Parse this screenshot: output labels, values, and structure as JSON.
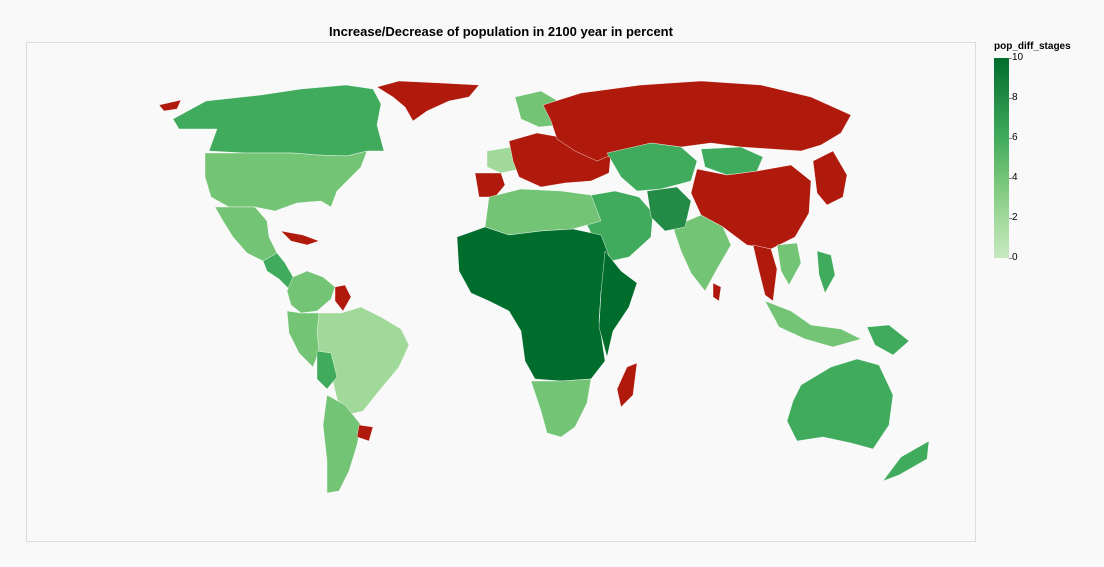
{
  "title": "Increase/Decrease of population in 2100 year in percent",
  "legend": {
    "title": "pop_diff_stages",
    "ticks": [
      "10",
      "8",
      "6",
      "4",
      "2",
      "0"
    ],
    "range": [
      0,
      10
    ],
    "colors": [
      "#c7e9c0",
      "#a1d99b",
      "#74c476",
      "#41ab5d",
      "#238b45",
      "#006d2c"
    ]
  },
  "decrease_color": "#b01a0c",
  "map_data": {
    "type": "choropleth",
    "field": "pop_diff_stages",
    "regions": [
      {
        "name": "Alaska",
        "stage": "decrease"
      },
      {
        "name": "Canada",
        "stage": 6
      },
      {
        "name": "United States",
        "stage": 4
      },
      {
        "name": "Greenland",
        "stage": "decrease"
      },
      {
        "name": "Mexico",
        "stage": 4
      },
      {
        "name": "Central America",
        "stage": 5
      },
      {
        "name": "Cuba",
        "stage": "decrease"
      },
      {
        "name": "Guyana/Suriname",
        "stage": "decrease"
      },
      {
        "name": "Brazil",
        "stage": 2
      },
      {
        "name": "Colombia/Venezuela",
        "stage": 3
      },
      {
        "name": "Peru",
        "stage": 4
      },
      {
        "name": "Bolivia",
        "stage": 6
      },
      {
        "name": "Argentina",
        "stage": 3
      },
      {
        "name": "Uruguay",
        "stage": "decrease"
      },
      {
        "name": "Western Europe",
        "stage": 2
      },
      {
        "name": "Southern/Central Europe",
        "stage": "decrease"
      },
      {
        "name": "Iberia",
        "stage": "decrease"
      },
      {
        "name": "Scandinavia",
        "stage": 4
      },
      {
        "name": "Russia",
        "stage": "decrease"
      },
      {
        "name": "China",
        "stage": "decrease"
      },
      {
        "name": "Japan/Korea",
        "stage": "decrease"
      },
      {
        "name": "Kazakhstan/Central Asia",
        "stage": 5
      },
      {
        "name": "Mongolia",
        "stage": 6
      },
      {
        "name": "Middle East",
        "stage": 6
      },
      {
        "name": "India",
        "stage": 3
      },
      {
        "name": "Pakistan/Afghanistan",
        "stage": 7
      },
      {
        "name": "Southeast Asia",
        "stage": 4
      },
      {
        "name": "Thailand/Myanmar",
        "stage": "decrease"
      },
      {
        "name": "Indonesia",
        "stage": 4
      },
      {
        "name": "Philippines",
        "stage": 6
      },
      {
        "name": "Papua New Guinea",
        "stage": 6
      },
      {
        "name": "North Africa",
        "stage": 4
      },
      {
        "name": "West/Central Africa",
        "stage": 10
      },
      {
        "name": "East Africa",
        "stage": 9
      },
      {
        "name": "Southern Africa",
        "stage": 4
      },
      {
        "name": "Madagascar",
        "stage": "decrease"
      },
      {
        "name": "Sri Lanka",
        "stage": "decrease"
      },
      {
        "name": "Australia",
        "stage": 6
      },
      {
        "name": "New Zealand",
        "stage": 5
      }
    ]
  }
}
